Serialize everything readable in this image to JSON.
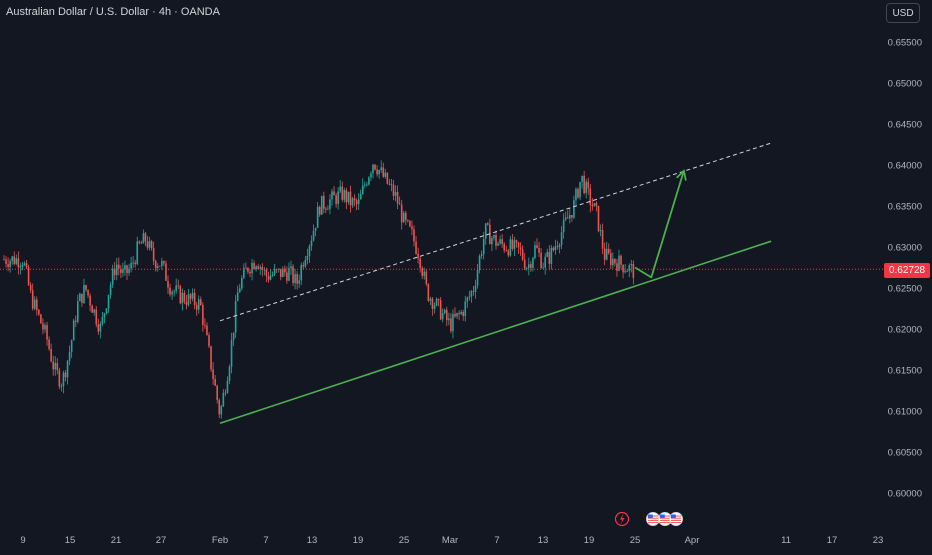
{
  "header": {
    "title": "Australian Dollar / U.S. Dollar · 4h · OANDA",
    "currency_button": "USD"
  },
  "current_price": {
    "label": "0.62728",
    "value": 0.62728
  },
  "colors": {
    "background": "#131722",
    "up": "#26a69a",
    "down": "#ef5350",
    "text": "#b2b5be",
    "trendline": "#4caf50",
    "dashed_line": "#d1d4dc",
    "price_line": "#f23645"
  },
  "event_icons": [
    "flash-icon",
    "us-flag-icon",
    "us-flag-icon",
    "us-flag-icon"
  ],
  "chart_data": {
    "type": "candlestick",
    "yaxis": {
      "ticks": [
        "0.65500",
        "0.65000",
        "0.64500",
        "0.64000",
        "0.63500",
        "0.63000",
        "0.62500",
        "0.62000",
        "0.61500",
        "0.61000",
        "0.60500",
        "0.60000"
      ],
      "ylim": [
        0.5975,
        0.658
      ]
    },
    "xaxis": {
      "ticks": [
        "9",
        "15",
        "21",
        "27",
        "Feb",
        "7",
        "13",
        "19",
        "25",
        "Mar",
        "7",
        "13",
        "19",
        "25",
        "Apr",
        "11",
        "17",
        "23"
      ]
    },
    "price_path": [
      [
        "9",
        0.6285
      ],
      [
        "10",
        0.624
      ],
      [
        "12",
        0.619
      ],
      [
        "13",
        0.615
      ],
      [
        "14",
        0.6135
      ],
      [
        "15",
        0.6175
      ],
      [
        "16",
        0.623
      ],
      [
        "17",
        0.625
      ],
      [
        "18",
        0.6225
      ],
      [
        "19",
        0.62
      ],
      [
        "20",
        0.6245
      ],
      [
        "21",
        0.628
      ],
      [
        "22",
        0.6265
      ],
      [
        "23",
        0.6275
      ],
      [
        "24",
        0.63
      ],
      [
        "25",
        0.631
      ],
      [
        "26",
        0.6285
      ],
      [
        "27",
        0.628
      ],
      [
        "28",
        0.625
      ],
      [
        "29",
        0.624
      ],
      [
        "30",
        0.6235
      ],
      [
        "31",
        0.623
      ],
      [
        "Feb 2",
        0.6095
      ],
      [
        "Feb 3",
        0.616
      ],
      [
        "Feb 4",
        0.625
      ],
      [
        "Feb 5",
        0.6275
      ],
      [
        "Feb 6",
        0.6285
      ],
      [
        "Feb 7",
        0.6265
      ],
      [
        "Feb 10",
        0.627
      ],
      [
        "Feb 11",
        0.6255
      ],
      [
        "Feb 12",
        0.629
      ],
      [
        "Feb 13",
        0.6315
      ],
      [
        "Feb 14",
        0.635
      ],
      [
        "Feb 17",
        0.6365
      ],
      [
        "Feb 18",
        0.6355
      ],
      [
        "Feb 19",
        0.635
      ],
      [
        "Feb 20",
        0.638
      ],
      [
        "Feb 21",
        0.6405
      ],
      [
        "Feb 24",
        0.636
      ],
      [
        "Feb 25",
        0.633
      ],
      [
        "Feb 26",
        0.6315
      ],
      [
        "Feb 27",
        0.629
      ],
      [
        "Feb 28",
        0.6245
      ],
      [
        "Mar 3",
        0.6205
      ],
      [
        "Mar 4",
        0.622
      ],
      [
        "Mar 5",
        0.625
      ],
      [
        "Mar 6",
        0.632
      ],
      [
        "Mar 7",
        0.6305
      ],
      [
        "Mar 10",
        0.6295
      ],
      [
        "Mar 11",
        0.6275
      ],
      [
        "Mar 12",
        0.63
      ],
      [
        "Mar 13",
        0.628
      ],
      [
        "Mar 14",
        0.629
      ],
      [
        "Mar 17",
        0.635
      ],
      [
        "Mar 18",
        0.6385
      ],
      [
        "Mar 19",
        0.636
      ],
      [
        "Mar 20",
        0.634
      ],
      [
        "Mar 21",
        0.629
      ],
      [
        "Mar 24",
        0.6275
      ],
      [
        "Mar 25",
        0.627
      ]
    ],
    "annotations": {
      "support_trendline": {
        "from": [
          "Feb 2",
          0.6085
        ],
        "to": [
          "Apr 7",
          0.6295
        ]
      },
      "channel_line_dashed": {
        "from": [
          "Feb 2",
          0.621
        ],
        "to": [
          "Apr 7",
          0.6415
        ]
      },
      "projection_arrow": {
        "points": [
          [
            "Mar 25",
            0.6275
          ],
          [
            "Mar 27",
            0.6263
          ],
          [
            "Mar 31",
            0.6393
          ]
        ]
      }
    }
  }
}
